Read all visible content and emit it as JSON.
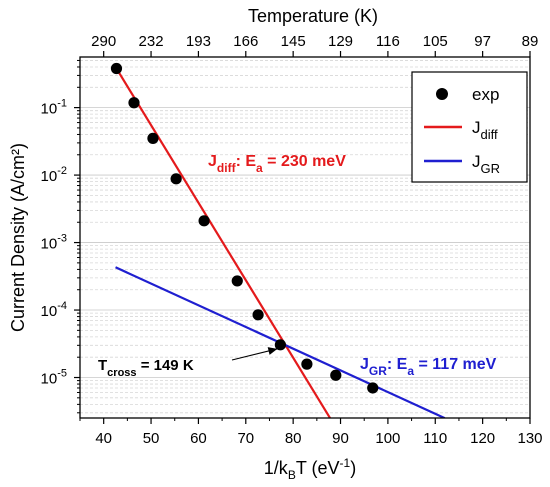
{
  "chart_data": {
    "type": "scatter",
    "xlabel_main": "1/k",
    "xlabel_sub": "B",
    "xlabel_rest": "T (eV",
    "xlabel_sup": "-1",
    "xlabel_close": ")",
    "ylabel": "Current Density (A/cm²)",
    "top_axis_label": "Temperature (K)",
    "x_ticks": [
      40,
      50,
      60,
      70,
      80,
      90,
      100,
      110,
      120,
      130
    ],
    "x_tick_labels": [
      "40",
      "50",
      "60",
      "70",
      "80",
      "90",
      "100",
      "110",
      "120",
      "130"
    ],
    "top_ticks": [
      {
        "x": 40,
        "label": "290"
      },
      {
        "x": 50,
        "label": "232"
      },
      {
        "x": 60,
        "label": "193"
      },
      {
        "x": 70,
        "label": "166"
      },
      {
        "x": 80,
        "label": "145"
      },
      {
        "x": 90,
        "label": "129"
      },
      {
        "x": 100,
        "label": "116"
      },
      {
        "x": 110,
        "label": "105"
      },
      {
        "x": 120,
        "label": "97"
      },
      {
        "x": 130,
        "label": "89"
      }
    ],
    "y_scale": "log",
    "y_ticks": [
      {
        "exp": -1,
        "base": "10",
        "sup": "-1"
      },
      {
        "exp": -2,
        "base": "10",
        "sup": "-2"
      },
      {
        "exp": -3,
        "base": "10",
        "sup": "-3"
      },
      {
        "exp": -4,
        "base": "10",
        "sup": "-4"
      },
      {
        "exp": -5,
        "base": "10",
        "sup": "-5"
      }
    ],
    "xlim": [
      35,
      130
    ],
    "ylim_log10": [
      -5.6,
      -0.25
    ],
    "grid": "minor horizontal dashed",
    "legend_position": "top-right",
    "series": [
      {
        "name": "exp",
        "kind": "points",
        "color": "#000000",
        "points": [
          [
            42.7,
            0.38
          ],
          [
            46.4,
            0.118
          ],
          [
            50.4,
            0.035
          ],
          [
            55.3,
            0.0088
          ],
          [
            61.2,
            0.0021
          ],
          [
            68.2,
            0.00027
          ],
          [
            72.6,
            8.5e-05
          ],
          [
            77.3,
            3.05e-05
          ],
          [
            82.9,
            1.58e-05
          ],
          [
            89.0,
            1.08e-05
          ],
          [
            96.8,
            7e-06
          ]
        ]
      },
      {
        "name": "J",
        "sub": "diff",
        "kind": "line",
        "color": "#e41a1c",
        "points": [
          [
            42.5,
            0.4
          ],
          [
            87.8,
            2.5e-06
          ]
        ]
      },
      {
        "name": "J",
        "sub": "GR",
        "kind": "line",
        "color": "#1f1fd0",
        "points": [
          [
            42.5,
            0.00043
          ],
          [
            112.0,
            2.5e-06
          ]
        ]
      }
    ],
    "annotations": {
      "diff": {
        "main": "J",
        "sub": "diff",
        "rest": ": E",
        "sub2": "a",
        "tail": " = 230 meV",
        "color": "#e41a1c"
      },
      "gr": {
        "main": "J",
        "sub": "GR",
        "rest": ": E",
        "sub2": "a",
        "tail": " = 117 meV",
        "color": "#1f1fd0"
      },
      "cross": {
        "main": "T",
        "sub": "cross",
        "tail": " = 149 K",
        "target_x": 77.3,
        "target_y": 2.85e-05
      }
    }
  }
}
